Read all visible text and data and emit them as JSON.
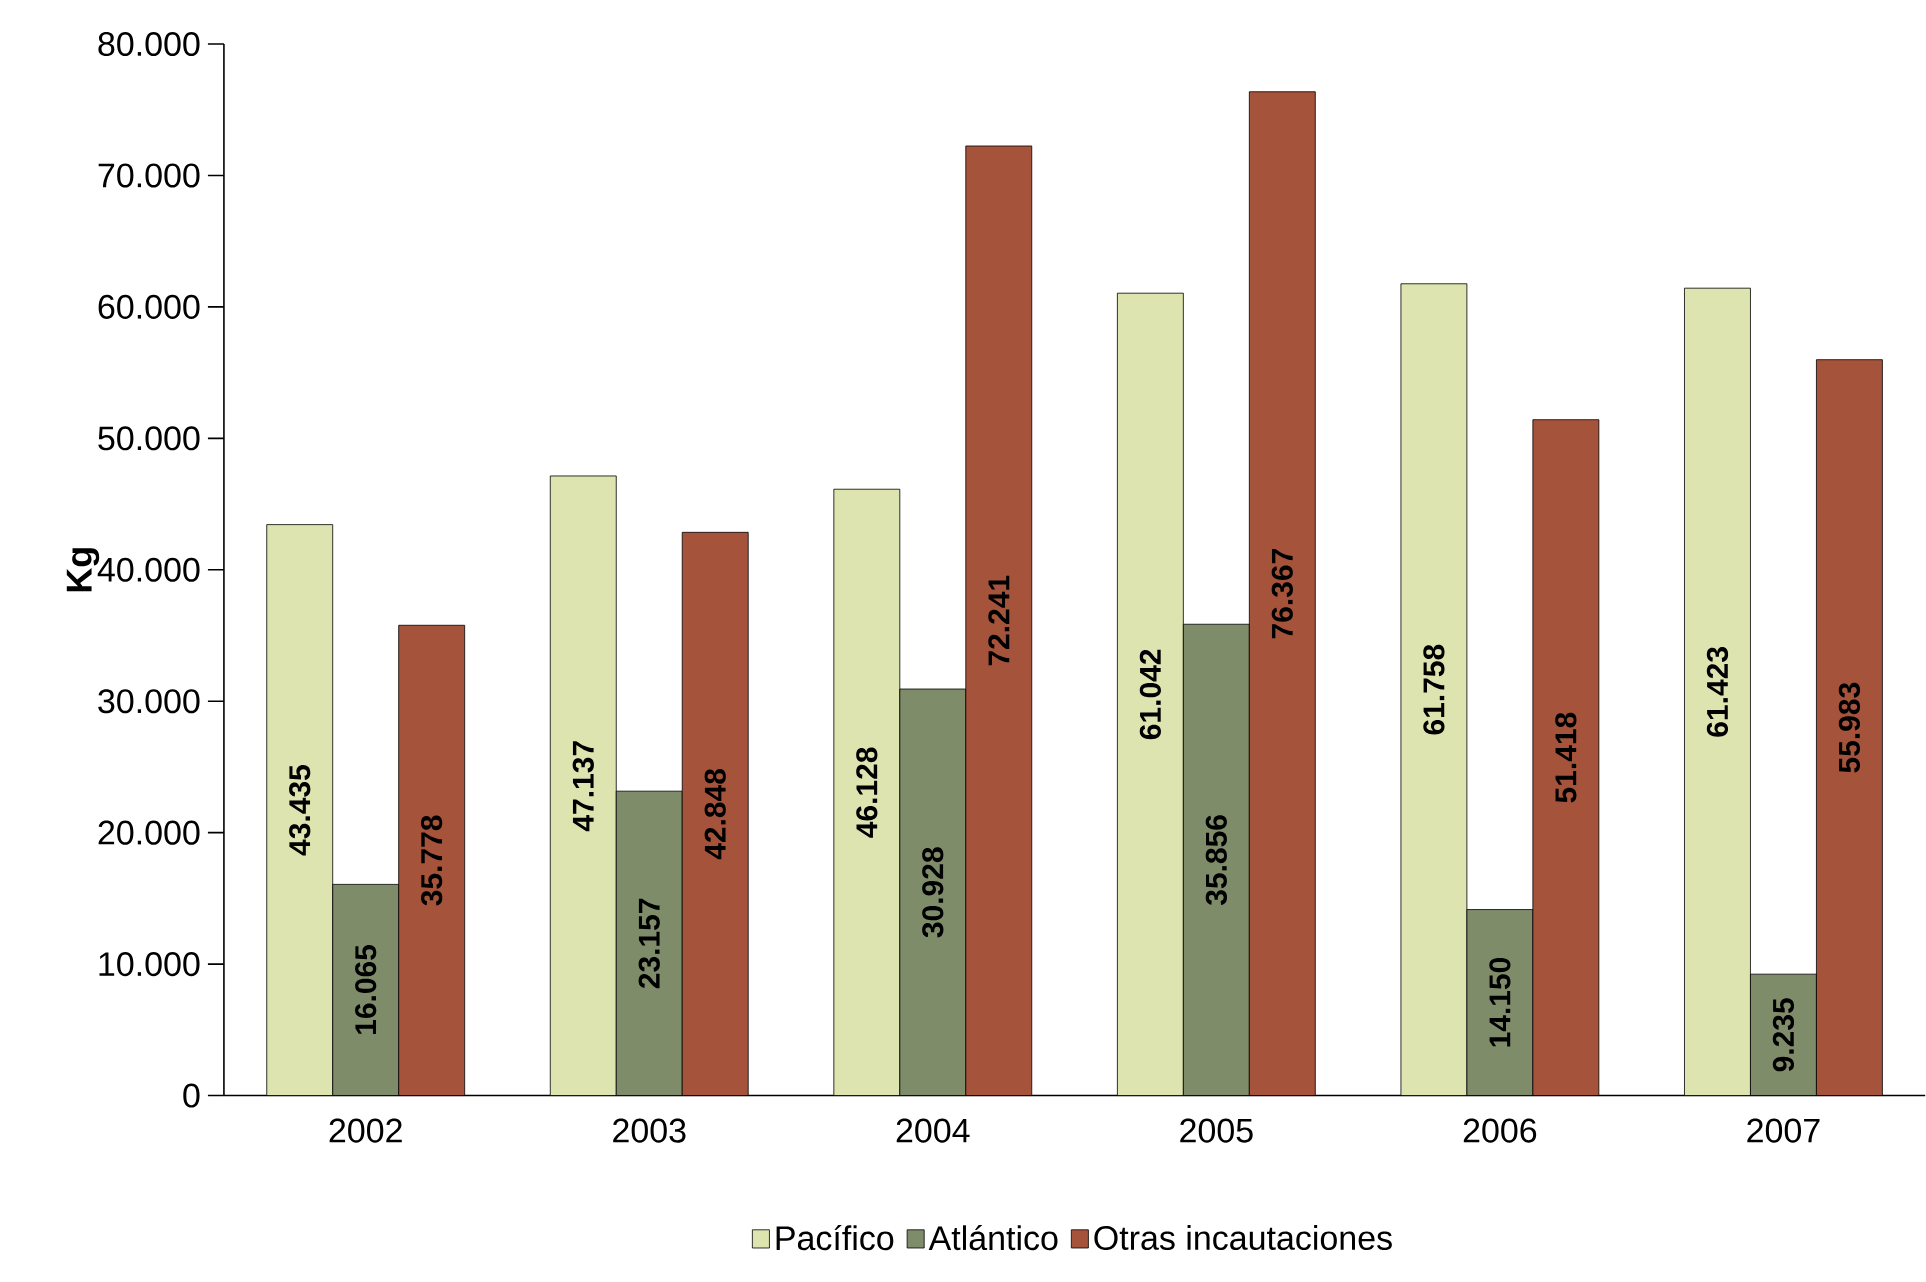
{
  "chart_data": {
    "type": "bar",
    "ylabel": "Kg",
    "categories": [
      "2002",
      "2003",
      "2004",
      "2005",
      "2006",
      "2007"
    ],
    "series": [
      {
        "name": "Pacífico",
        "color": "#dde4b0",
        "values": [
          43435,
          47137,
          46128,
          61042,
          61758,
          61423
        ],
        "value_labels": [
          "43.435",
          "47.137",
          "46.128",
          "61.042",
          "61.758",
          "61.423"
        ]
      },
      {
        "name": "Atlántico",
        "color": "#7f8c6a",
        "values": [
          16065,
          23157,
          30928,
          35856,
          14150,
          9235
        ],
        "value_labels": [
          "16.065",
          "23.157",
          "30.928",
          "35.856",
          "14.150",
          "9.235"
        ]
      },
      {
        "name": "Otras incautaciones",
        "color": "#a5533a",
        "values": [
          35778,
          42848,
          72241,
          76367,
          51418,
          55983
        ],
        "value_labels": [
          "35.778",
          "42.848",
          "72.241",
          "76.367",
          "51.418",
          "55.983"
        ]
      }
    ],
    "ylim": [
      0,
      80000
    ],
    "yticks": [
      {
        "value": 0,
        "label": "0"
      },
      {
        "value": 10000,
        "label": "10.000"
      },
      {
        "value": 20000,
        "label": "20.000"
      },
      {
        "value": 30000,
        "label": "30.000"
      },
      {
        "value": 40000,
        "label": "40.000"
      },
      {
        "value": 50000,
        "label": "50.000"
      },
      {
        "value": 60000,
        "label": "60.000"
      },
      {
        "value": 70000,
        "label": "70.000"
      },
      {
        "value": 80000,
        "label": "80.000"
      }
    ],
    "grid": false,
    "legend": "bottom"
  }
}
